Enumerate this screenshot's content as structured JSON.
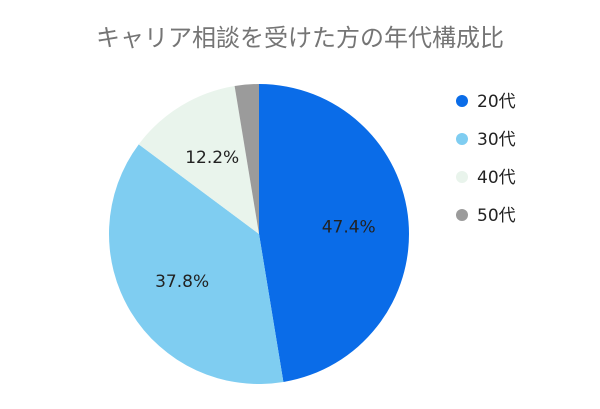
{
  "chart_data": {
    "type": "pie",
    "title": "キャリア相談を受けた方の年代構成比",
    "categories": [
      "20代",
      "30代",
      "40代",
      "50代"
    ],
    "values": [
      47.4,
      37.8,
      12.2,
      2.6
    ],
    "data_labels": [
      "47.4%",
      "37.8%",
      "12.2%",
      ""
    ],
    "colors": [
      "#0a6ce8",
      "#7fcdf1",
      "#e9f4ec",
      "#9b9b9b"
    ],
    "start_angle_deg": 0,
    "direction": "clockwise",
    "legend_position": "right"
  }
}
